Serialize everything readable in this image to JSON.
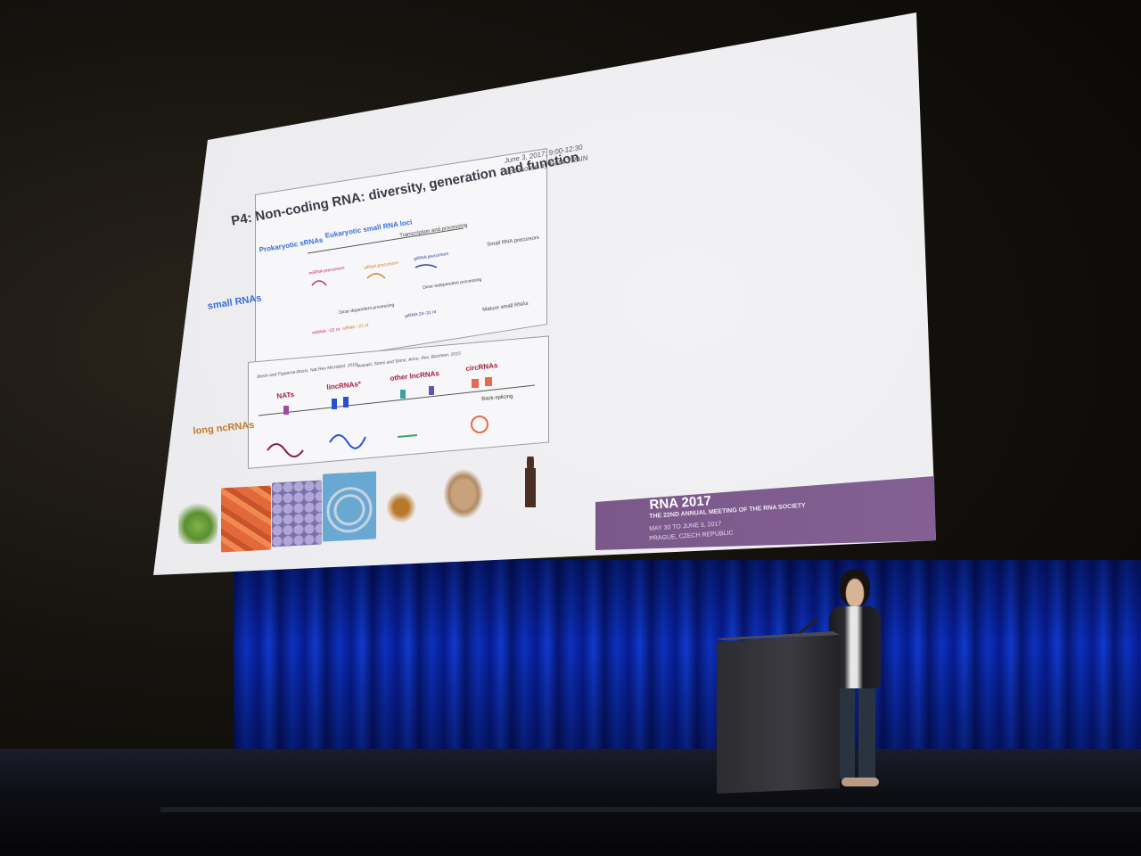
{
  "slide": {
    "title": "P4: Non-coding RNA: diversity, generation and function",
    "date": "June 3, 2017; 9:00-12:30",
    "sponsor": "Sponsored by RNA-TRAIN",
    "labels": {
      "small_rnas": "small RNAs",
      "long_ncrnas": "long ncRNAs",
      "prokaryotic": "Prokaryotic sRNAs",
      "eukaryotic": "Eukaryotic small RNA loci",
      "transcription": "Transcription and processing",
      "small_precursors": "Small RNA precursors",
      "mirna_precursors": "miRNA precursors",
      "sirna_precursors": "siRNA precursors",
      "pirna_precursors": "piRNA precursors",
      "dicer_dependent": "Dicer-dependent processing",
      "dicer_independent": "Dicer-independent processing",
      "mature": "Mature small RNAs",
      "mirna": "miRNA ~22 nt",
      "sirna": "siRNA ~21 nt",
      "pirna": "piRNA 24~31 nt",
      "reference1": "Bosin and Figueroa-Bossi, Nat Rev Microbiol. 2016;",
      "reference2": "Iwasaki, Siomi and Siomi, Annu. Rev. Biochem. 2015",
      "nats": "NATs",
      "lincrnas": "lincRNAs*",
      "other_lncrnas": "other lncRNAs",
      "circrnas": "circRNAs",
      "back_splicing": "Back-splicing"
    }
  },
  "banner": {
    "title": "RNA 2017",
    "subtitle": "THE 22ND ANNUAL MEETING OF THE RNA SOCIETY",
    "dates": "MAY 30 TO JUNE 3, 2017",
    "location": "PRAGUE, CZECH REPUBLIC",
    "color": "#7d5a8c"
  }
}
